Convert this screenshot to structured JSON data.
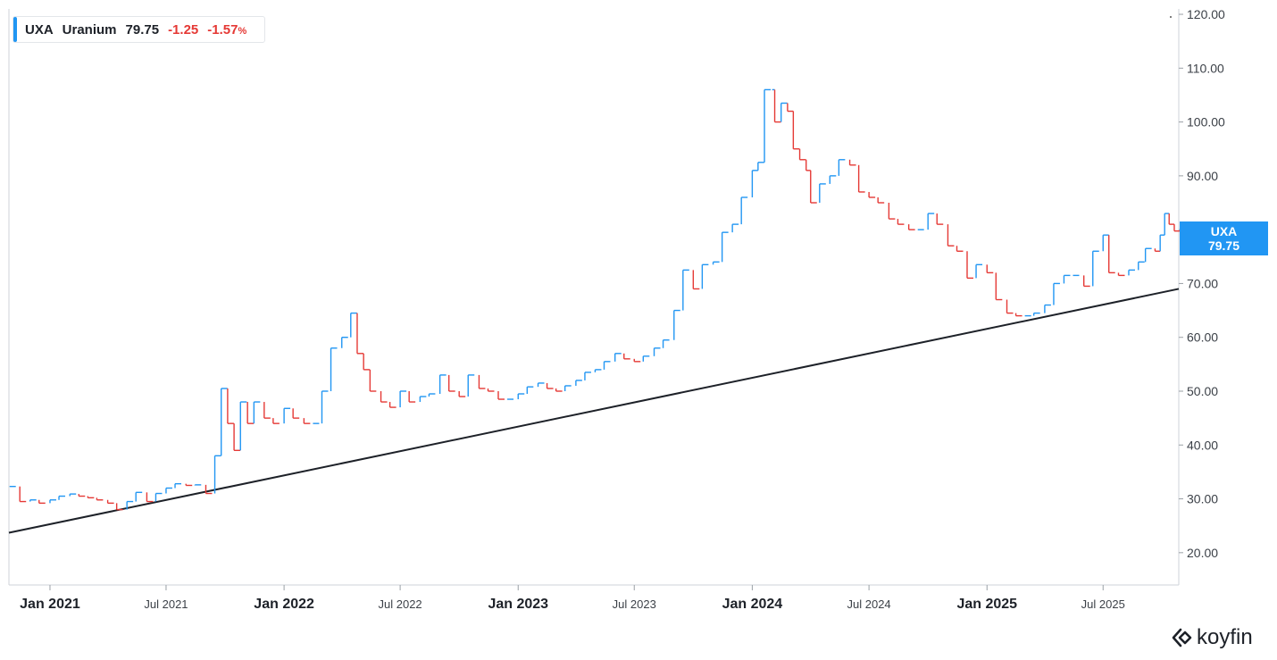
{
  "legend": {
    "ticker": "UXA",
    "name": "Uranium",
    "price": "79.75",
    "change": "-1.25",
    "change_pct": "-1.57",
    "pct_sign": "%"
  },
  "price_tag": {
    "ticker": "UXA",
    "price": "79.75"
  },
  "brand": {
    "name": "koyfin",
    "icon": "koyfin-logo-icon"
  },
  "colors": {
    "up": "#2196f3",
    "down": "#e53935",
    "trendline": "#1d2128",
    "axis": "#9aa0a6",
    "text": "#1d2128"
  },
  "chart_data": {
    "type": "line",
    "style": "ohlc-bars",
    "title": "",
    "xlabel": "",
    "ylabel": "",
    "ylim": [
      14,
      121
    ],
    "xlim": [
      "2020-10-29",
      "2025-10-27"
    ],
    "y_ticks": [
      "20.00",
      "30.00",
      "40.00",
      "50.00",
      "60.00",
      "70.00",
      "80.00",
      "90.00",
      "100.00",
      "110.00",
      "120.00"
    ],
    "x_ticks": [
      {
        "label": "Jan 2021",
        "date": "2021-01-01",
        "major": true
      },
      {
        "label": "Jul 2021",
        "date": "2021-07-01",
        "major": false
      },
      {
        "label": "Jan 2022",
        "date": "2022-01-01",
        "major": true
      },
      {
        "label": "Jul 2022",
        "date": "2022-07-01",
        "major": false
      },
      {
        "label": "Jan 2023",
        "date": "2023-01-01",
        "major": true
      },
      {
        "label": "Jul 2023",
        "date": "2023-07-01",
        "major": false
      },
      {
        "label": "Jan 2024",
        "date": "2024-01-01",
        "major": true
      },
      {
        "label": "Jul 2024",
        "date": "2024-07-01",
        "major": false
      },
      {
        "label": "Jan 2025",
        "date": "2025-01-01",
        "major": true
      },
      {
        "label": "Jul 2025",
        "date": "2025-07-01",
        "major": false
      }
    ],
    "grid": false,
    "last_value": 79.75,
    "series": [
      {
        "values": [
          [
            "2020-10-30",
            32.3
          ],
          [
            "2020-11-15",
            29.5
          ],
          [
            "2020-12-01",
            29.8
          ],
          [
            "2020-12-15",
            29.2
          ],
          [
            "2021-01-01",
            29.8
          ],
          [
            "2021-01-15",
            30.5
          ],
          [
            "2021-02-01",
            30.9
          ],
          [
            "2021-02-15",
            30.5
          ],
          [
            "2021-03-01",
            30.2
          ],
          [
            "2021-03-15",
            29.8
          ],
          [
            "2021-04-01",
            29.2
          ],
          [
            "2021-04-15",
            28.0
          ],
          [
            "2021-05-01",
            29.5
          ],
          [
            "2021-05-15",
            31.2
          ],
          [
            "2021-06-01",
            29.5
          ],
          [
            "2021-06-15",
            31.0
          ],
          [
            "2021-07-01",
            32.0
          ],
          [
            "2021-07-15",
            32.8
          ],
          [
            "2021-08-01",
            32.5
          ],
          [
            "2021-08-15",
            32.6
          ],
          [
            "2021-09-01",
            31.0
          ],
          [
            "2021-09-15",
            38.0
          ],
          [
            "2021-09-25",
            50.5
          ],
          [
            "2021-10-05",
            44.0
          ],
          [
            "2021-10-15",
            39.0
          ],
          [
            "2021-10-25",
            48.0
          ],
          [
            "2021-11-05",
            44.0
          ],
          [
            "2021-11-15",
            48.0
          ],
          [
            "2021-12-01",
            45.0
          ],
          [
            "2021-12-15",
            44.0
          ],
          [
            "2022-01-01",
            46.8
          ],
          [
            "2022-01-15",
            45.0
          ],
          [
            "2022-02-01",
            44.0
          ],
          [
            "2022-02-15",
            44.0
          ],
          [
            "2022-03-01",
            50.0
          ],
          [
            "2022-03-15",
            58.0
          ],
          [
            "2022-04-01",
            60.0
          ],
          [
            "2022-04-15",
            64.5
          ],
          [
            "2022-04-25",
            57.0
          ],
          [
            "2022-05-05",
            54.0
          ],
          [
            "2022-05-15",
            50.0
          ],
          [
            "2022-06-01",
            48.0
          ],
          [
            "2022-06-15",
            47.0
          ],
          [
            "2022-07-01",
            50.0
          ],
          [
            "2022-07-15",
            48.0
          ],
          [
            "2022-08-01",
            49.0
          ],
          [
            "2022-08-15",
            49.5
          ],
          [
            "2022-09-01",
            53.0
          ],
          [
            "2022-09-15",
            50.0
          ],
          [
            "2022-10-01",
            49.0
          ],
          [
            "2022-10-15",
            53.0
          ],
          [
            "2022-11-01",
            50.5
          ],
          [
            "2022-11-15",
            50.0
          ],
          [
            "2022-12-01",
            48.5
          ],
          [
            "2022-12-15",
            48.5
          ],
          [
            "2023-01-01",
            49.5
          ],
          [
            "2023-01-15",
            50.8
          ],
          [
            "2023-02-01",
            51.5
          ],
          [
            "2023-02-15",
            50.5
          ],
          [
            "2023-03-01",
            50.0
          ],
          [
            "2023-03-15",
            51.0
          ],
          [
            "2023-04-01",
            52.0
          ],
          [
            "2023-04-15",
            53.5
          ],
          [
            "2023-05-01",
            54.0
          ],
          [
            "2023-05-15",
            55.5
          ],
          [
            "2023-06-01",
            57.0
          ],
          [
            "2023-06-15",
            56.0
          ],
          [
            "2023-07-01",
            55.5
          ],
          [
            "2023-07-15",
            56.5
          ],
          [
            "2023-08-01",
            58.0
          ],
          [
            "2023-08-15",
            59.5
          ],
          [
            "2023-09-01",
            65.0
          ],
          [
            "2023-09-15",
            72.5
          ],
          [
            "2023-10-01",
            69.0
          ],
          [
            "2023-10-15",
            73.5
          ],
          [
            "2023-11-01",
            74.0
          ],
          [
            "2023-11-15",
            79.5
          ],
          [
            "2023-12-01",
            81.0
          ],
          [
            "2023-12-15",
            86.0
          ],
          [
            "2024-01-01",
            91.0
          ],
          [
            "2024-01-10",
            92.5
          ],
          [
            "2024-01-20",
            106.0
          ],
          [
            "2024-02-01",
            106.0
          ],
          [
            "2024-02-05",
            100.0
          ],
          [
            "2024-02-15",
            103.5
          ],
          [
            "2024-02-25",
            102.0
          ],
          [
            "2024-03-05",
            95.0
          ],
          [
            "2024-03-15",
            93.0
          ],
          [
            "2024-03-25",
            91.0
          ],
          [
            "2024-04-01",
            85.0
          ],
          [
            "2024-04-15",
            88.5
          ],
          [
            "2024-05-01",
            90.0
          ],
          [
            "2024-05-15",
            93.0
          ],
          [
            "2024-06-01",
            92.0
          ],
          [
            "2024-06-15",
            87.0
          ],
          [
            "2024-07-01",
            86.0
          ],
          [
            "2024-07-15",
            85.0
          ],
          [
            "2024-08-01",
            82.0
          ],
          [
            "2024-08-15",
            81.0
          ],
          [
            "2024-09-01",
            80.0
          ],
          [
            "2024-09-15",
            80.0
          ],
          [
            "2024-10-01",
            83.0
          ],
          [
            "2024-10-15",
            81.0
          ],
          [
            "2024-11-01",
            77.0
          ],
          [
            "2024-11-15",
            76.0
          ],
          [
            "2024-12-01",
            71.0
          ],
          [
            "2024-12-15",
            73.5
          ],
          [
            "2025-01-01",
            72.0
          ],
          [
            "2025-01-15",
            67.0
          ],
          [
            "2025-02-01",
            64.5
          ],
          [
            "2025-02-15",
            64.0
          ],
          [
            "2025-03-01",
            64.0
          ],
          [
            "2025-03-15",
            64.5
          ],
          [
            "2025-04-01",
            66.0
          ],
          [
            "2025-04-15",
            70.0
          ],
          [
            "2025-05-01",
            71.5
          ],
          [
            "2025-05-15",
            71.5
          ],
          [
            "2025-06-01",
            69.5
          ],
          [
            "2025-06-15",
            76.0
          ],
          [
            "2025-07-01",
            79.0
          ],
          [
            "2025-07-10",
            72.0
          ],
          [
            "2025-07-25",
            71.5
          ],
          [
            "2025-08-10",
            72.5
          ],
          [
            "2025-08-25",
            74.0
          ],
          [
            "2025-09-05",
            76.5
          ],
          [
            "2025-09-20",
            76.0
          ],
          [
            "2025-09-28",
            79.0
          ],
          [
            "2025-10-05",
            83.0
          ],
          [
            "2025-10-12",
            81.0
          ],
          [
            "2025-10-20",
            79.75
          ]
        ]
      }
    ],
    "trendline": {
      "start": [
        "2020-10-29",
        23.7
      ],
      "end": [
        "2025-10-27",
        69.0
      ]
    }
  }
}
